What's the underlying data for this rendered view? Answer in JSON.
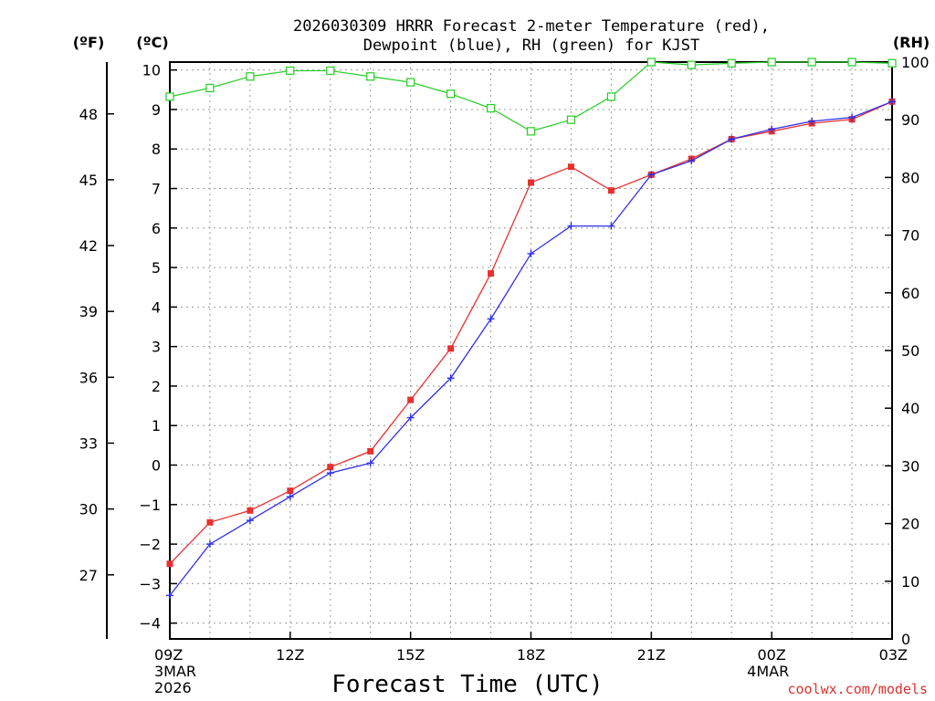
{
  "chart_data": {
    "type": "line",
    "title_line1": "2026030309 HRRR Forecast 2-meter Temperature (red),",
    "title_line2": "Dewpoint (blue), RH (green) for KJST",
    "xlabel": "Forecast Time (UTC)",
    "credit": "coolwx.com/models",
    "unit_left_f": "(ºF)",
    "unit_left_c": "(ºC)",
    "unit_right": "(RH)",
    "x_range": [
      0,
      18
    ],
    "c_range": [
      -4.4,
      10.2
    ],
    "rh_range": [
      0,
      100
    ],
    "x_ticks": [
      {
        "x": 0,
        "label": "09Z",
        "sub1": "3MAR",
        "sub2": "2026"
      },
      {
        "x": 3,
        "label": "12Z",
        "sub1": "",
        "sub2": ""
      },
      {
        "x": 6,
        "label": "15Z",
        "sub1": "",
        "sub2": ""
      },
      {
        "x": 9,
        "label": "18Z",
        "sub1": "",
        "sub2": ""
      },
      {
        "x": 12,
        "label": "21Z",
        "sub1": "",
        "sub2": ""
      },
      {
        "x": 15,
        "label": "00Z",
        "sub1": "4MAR",
        "sub2": ""
      },
      {
        "x": 18,
        "label": "03Z",
        "sub1": "",
        "sub2": ""
      }
    ],
    "c_ticks": [
      -4,
      -3,
      -2,
      -1,
      0,
      1,
      2,
      3,
      4,
      5,
      6,
      7,
      8,
      9,
      10
    ],
    "c_tick_labels": [
      "−4",
      "−3",
      "−2",
      "−1",
      "0",
      "1",
      "2",
      "3",
      "4",
      "5",
      "6",
      "7",
      "8",
      "9",
      "10"
    ],
    "f_ticks": [
      27,
      30,
      33,
      36,
      39,
      42,
      45,
      48
    ],
    "f_tick_labels": [
      "27",
      "30",
      "33",
      "36",
      "39",
      "42",
      "45",
      "48"
    ],
    "rh_ticks": [
      0,
      10,
      20,
      30,
      40,
      50,
      60,
      70,
      80,
      90,
      100
    ],
    "rh_tick_labels": [
      "0",
      "10",
      "20",
      "30",
      "40",
      "50",
      "60",
      "70",
      "80",
      "90",
      "100"
    ],
    "grid": true,
    "series": [
      {
        "name": "Temperature (°C)",
        "color": "#e83030",
        "marker": "filled-square",
        "axis": "c",
        "x": [
          0,
          1,
          2,
          3,
          4,
          5,
          6,
          7,
          8,
          9,
          10,
          11,
          12,
          13,
          14,
          15,
          16,
          17,
          18
        ],
        "values": [
          -2.5,
          -1.45,
          -1.15,
          -0.65,
          -0.05,
          0.35,
          1.65,
          2.95,
          4.85,
          7.15,
          7.55,
          6.95,
          7.35,
          7.75,
          8.25,
          8.45,
          8.65,
          8.75,
          9.2
        ]
      },
      {
        "name": "Dewpoint (°C)",
        "color": "#3030e8",
        "marker": "plus",
        "axis": "c",
        "x": [
          0,
          1,
          2,
          3,
          4,
          5,
          6,
          7,
          8,
          9,
          10,
          11,
          12,
          13,
          14,
          15,
          16,
          17,
          18
        ],
        "values": [
          -3.3,
          -2.0,
          -1.4,
          -0.8,
          -0.2,
          0.05,
          1.2,
          2.2,
          3.7,
          5.35,
          6.05,
          6.05,
          7.35,
          7.7,
          8.25,
          8.5,
          8.7,
          8.8,
          9.2
        ]
      },
      {
        "name": "RH (%)",
        "color": "#30d030",
        "marker": "open-square",
        "axis": "rh",
        "x": [
          0,
          1,
          2,
          3,
          4,
          5,
          6,
          7,
          8,
          9,
          10,
          11,
          12,
          13,
          14,
          15,
          16,
          17,
          18
        ],
        "values": [
          94,
          95.5,
          97.5,
          98.5,
          98.5,
          97.5,
          96.5,
          94.5,
          92,
          88,
          90,
          94,
          100,
          99.5,
          99.8,
          100,
          100,
          100,
          99.8
        ]
      }
    ]
  }
}
